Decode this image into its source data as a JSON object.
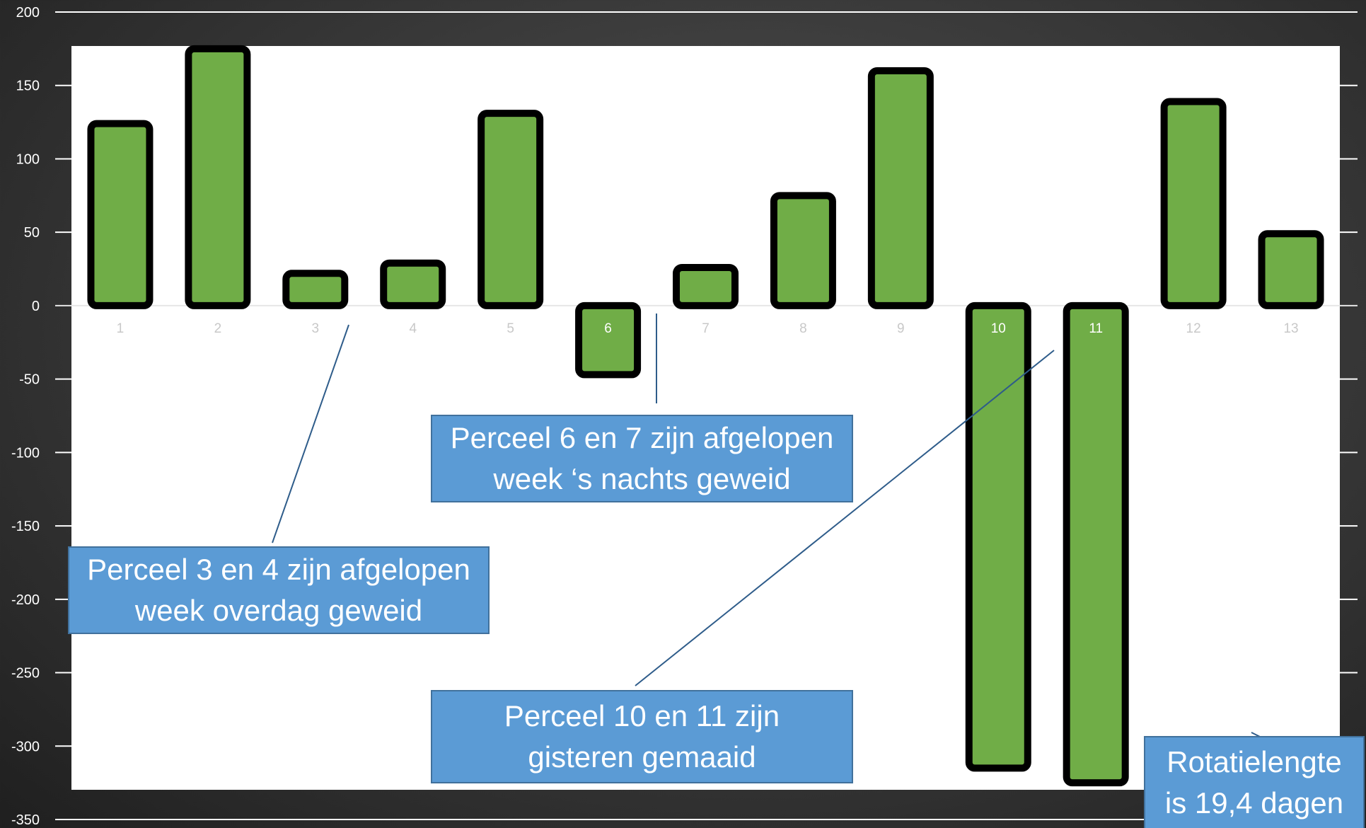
{
  "chart_data": {
    "type": "bar",
    "categories": [
      "1",
      "2",
      "3",
      "4",
      "5",
      "6",
      "7",
      "8",
      "9",
      "10",
      "11",
      "12",
      "13"
    ],
    "values": [
      124,
      175,
      22,
      29,
      131,
      -47,
      26,
      75,
      160,
      -315,
      -325,
      139,
      49
    ],
    "ylim": [
      -350,
      200
    ],
    "yticks": [
      "200",
      "150",
      "100",
      "50",
      "0",
      "-50",
      "-100",
      "-150",
      "-200",
      "-250",
      "-300",
      "-350"
    ],
    "ytick_values": [
      200,
      150,
      100,
      50,
      0,
      -50,
      -100,
      -150,
      -200,
      -250,
      -300,
      -350
    ],
    "grid": true,
    "bar_color": "#70ad47",
    "bar_edge_color": "#000000",
    "plot_background": "#ffffff",
    "annotations": [
      {
        "id": "callout-34",
        "lines": [
          "Perceel 3 en 4 zijn afgelopen",
          "week overdag geweid"
        ],
        "target_category": "3"
      },
      {
        "id": "callout-67",
        "lines": [
          "Perceel 6 en 7 zijn afgelopen",
          "week ‘s nachts geweid"
        ],
        "target_category": "6"
      },
      {
        "id": "callout-1011",
        "lines": [
          "Perceel 10 en 11 zijn",
          "gisteren gemaaid"
        ],
        "target_category": "11"
      },
      {
        "id": "callout-rot",
        "lines": [
          "Rotatielengte",
          "is 19,4 dagen"
        ],
        "target_category": "13"
      }
    ]
  },
  "colors": {
    "callout_fill": "#5b9bd5",
    "callout_border": "#41719c",
    "leader_line": "#2e5c8a",
    "axis_text": "#ffffff",
    "gridline": "#ffffff"
  }
}
